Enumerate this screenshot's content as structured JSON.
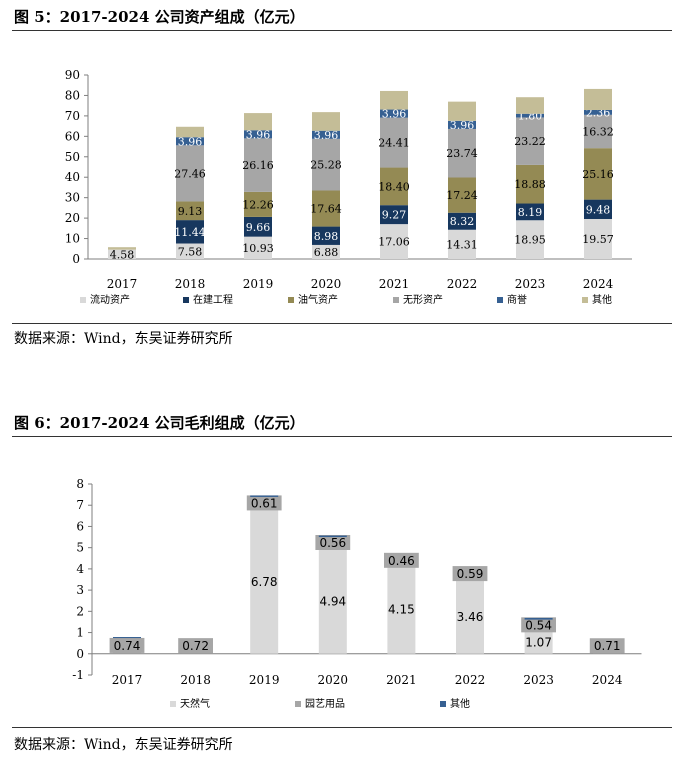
{
  "figures": [
    {
      "title": "图 5：2017-2024 公司资产组成（亿元）",
      "source": "数据来源：Wind，东吴证券研究所"
    },
    {
      "title": "图 6：2017-2024 公司毛利组成（亿元）",
      "source": "数据来源：Wind，东吴证券研究所"
    }
  ],
  "chart_data": [
    {
      "type": "bar",
      "stacked": true,
      "categories": [
        "2017",
        "2018",
        "2019",
        "2020",
        "2021",
        "2022",
        "2023",
        "2024"
      ],
      "ylim": [
        0,
        90
      ],
      "yticks": [
        0,
        10,
        20,
        30,
        40,
        50,
        60,
        70,
        80,
        90
      ],
      "grid": false,
      "legend_position": "bottom",
      "series": [
        {
          "name": "流动资产",
          "color": "#d9d9d9",
          "label_color": "#000000",
          "values": [
            4.58,
            7.58,
            10.93,
            6.88,
            17.06,
            14.31,
            18.95,
            19.57
          ],
          "labels": [
            "4.58",
            "7.58",
            "10.93",
            "6.88",
            "17.06",
            "14.31",
            "18.95",
            "19.57"
          ]
        },
        {
          "name": "在建工程",
          "color": "#17375e",
          "label_color": "#ffffff",
          "values": [
            0,
            11.44,
            9.66,
            8.98,
            9.27,
            8.32,
            8.19,
            9.48
          ],
          "labels": [
            "",
            "11.44",
            "9.66",
            "8.98",
            "9.27",
            "8.32",
            "8.19",
            "9.48"
          ]
        },
        {
          "name": "油气资产",
          "color": "#948a54",
          "label_color": "#000000",
          "values": [
            0,
            9.13,
            12.26,
            17.64,
            18.4,
            17.24,
            18.88,
            25.16
          ],
          "labels": [
            "",
            "9.13",
            "12.26",
            "17.64",
            "18.40",
            "17.24",
            "18.88",
            "25.16"
          ]
        },
        {
          "name": "无形资产",
          "color": "#a6a6a6",
          "label_color": "#000000",
          "values": [
            0,
            27.46,
            26.16,
            25.28,
            24.41,
            23.74,
            23.22,
            16.32
          ],
          "labels": [
            "",
            "27.46",
            "26.16",
            "25.28",
            "24.41",
            "23.74",
            "23.22",
            "16.32"
          ]
        },
        {
          "name": "商誉",
          "color": "#366092",
          "label_color": "#ffffff",
          "values": [
            0,
            3.96,
            3.96,
            3.96,
            3.96,
            3.96,
            1.8,
            2.36
          ],
          "labels": [
            "",
            "3.96",
            "3.96",
            "3.96",
            "3.96",
            "3.96",
            "1.80",
            "2.36"
          ]
        },
        {
          "name": "其他",
          "color": "#c4bd97",
          "label_color": "#000000",
          "values": [
            1.2,
            5.1,
            8.4,
            9.1,
            9.1,
            9.4,
            8.1,
            10.3
          ],
          "labels": [
            "",
            "",
            "",
            "",
            "",
            "",
            "",
            ""
          ]
        }
      ]
    },
    {
      "type": "bar",
      "stacked": true,
      "categories": [
        "2017",
        "2018",
        "2019",
        "2020",
        "2021",
        "2022",
        "2023",
        "2024"
      ],
      "ylim": [
        -1,
        8
      ],
      "yticks": [
        -1,
        0,
        1,
        2,
        3,
        4,
        5,
        6,
        7,
        8
      ],
      "grid": false,
      "legend_position": "bottom",
      "series": [
        {
          "name": "天然气",
          "color": "#d9d9d9",
          "label_color": "#000000",
          "values": [
            0,
            0,
            6.78,
            4.94,
            4.15,
            3.46,
            1.07,
            0
          ],
          "labels": [
            "",
            "",
            "6.78",
            "4.94",
            "4.15",
            "3.46",
            "1.07",
            ""
          ]
        },
        {
          "name": "园艺用品",
          "color": "#a6a6a6",
          "label_color": "#000000",
          "values": [
            0.74,
            0.72,
            0.61,
            0.56,
            0.46,
            0.59,
            0.54,
            0.71
          ],
          "labels": [
            "0.74",
            "0.72",
            "0.61",
            "0.56",
            "0.46",
            "0.59",
            "0.54",
            "0.71"
          ]
        },
        {
          "name": "其他",
          "color": "#366092",
          "label_color": "#ffffff",
          "values": [
            0.05,
            0,
            0.07,
            0.07,
            0,
            0,
            0.08,
            0
          ],
          "labels": [
            "",
            "",
            "",
            "",
            "",
            "",
            "",
            ""
          ]
        }
      ]
    }
  ]
}
